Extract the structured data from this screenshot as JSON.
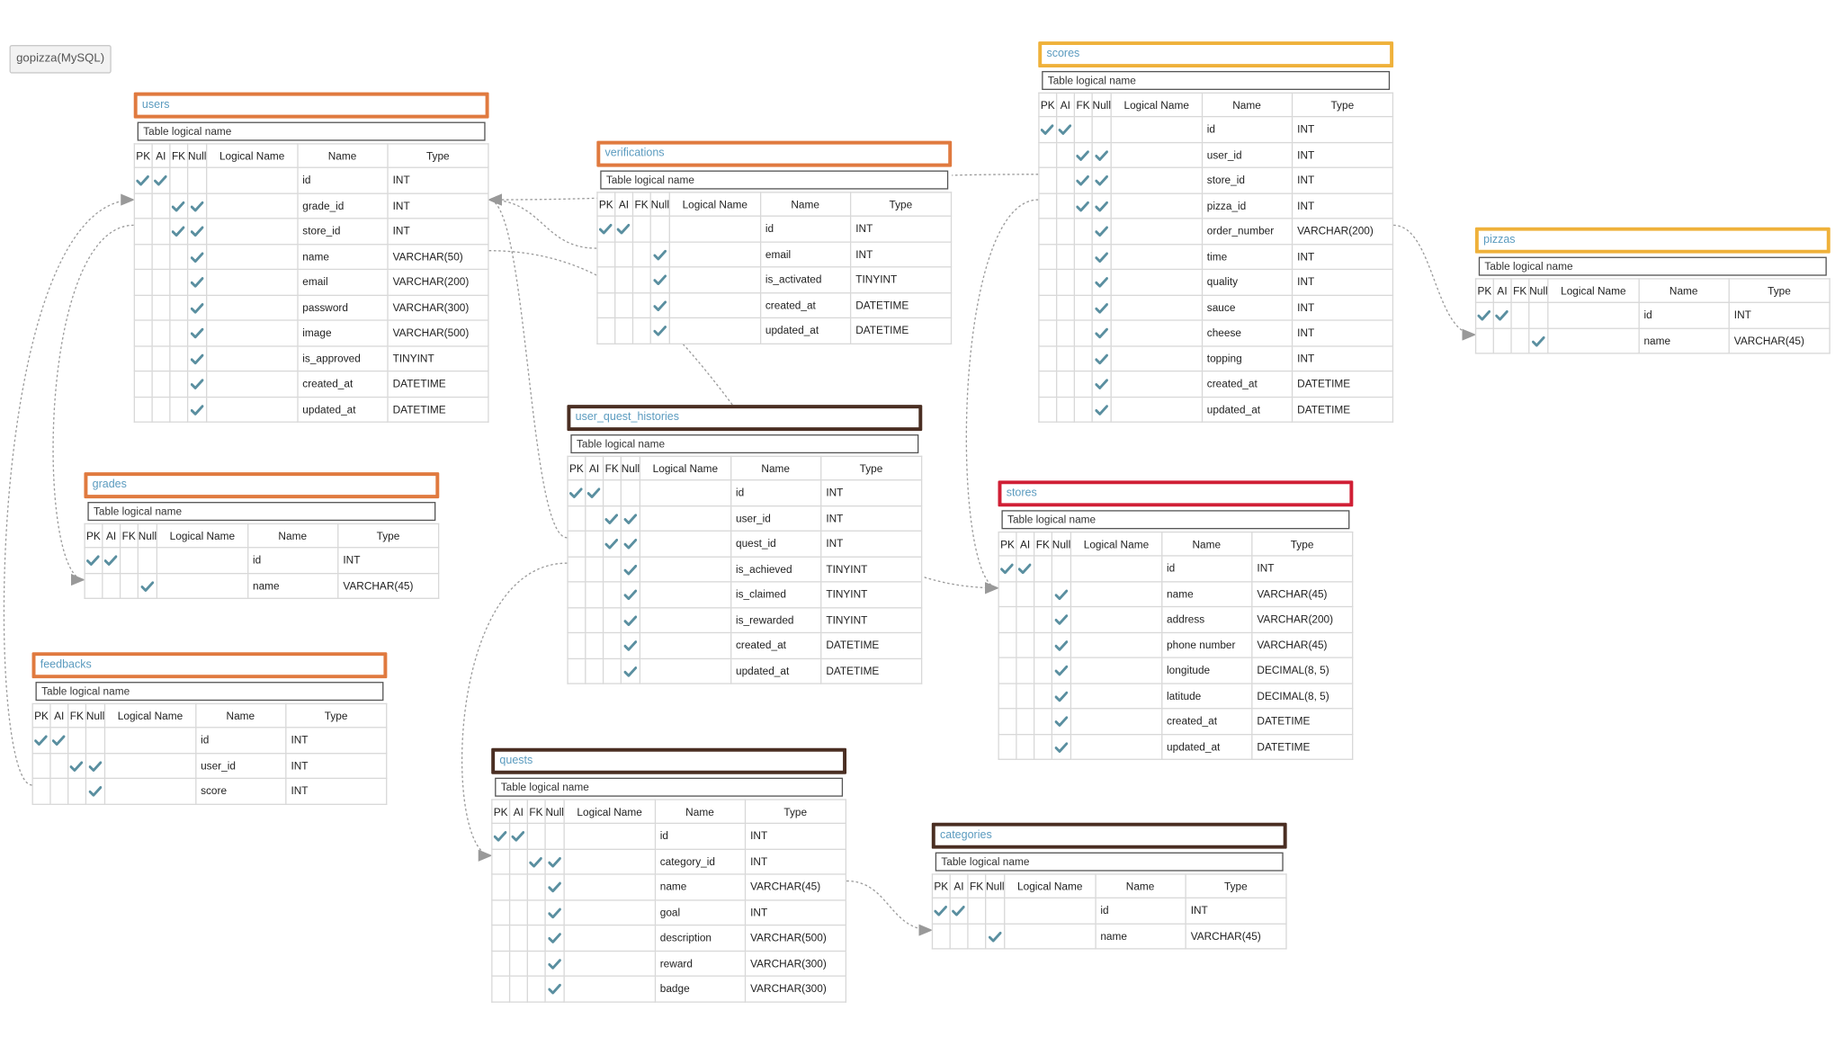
{
  "database_label": "gopizza(MySQL)",
  "headers": {
    "pk": "PK",
    "ai": "AI",
    "fk": "FK",
    "null": "Null",
    "logical": "Logical Name",
    "name": "Name",
    "type": "Type"
  },
  "logical_placeholder": "Table logical name",
  "tables": [
    {
      "key": "users",
      "name": "users",
      "border_color": "#e07a3f",
      "columns": [
        {
          "pk": true,
          "ai": true,
          "fk": false,
          "null": false,
          "name": "id",
          "type": "INT"
        },
        {
          "pk": false,
          "ai": false,
          "fk": true,
          "null": true,
          "name": "grade_id",
          "type": "INT"
        },
        {
          "pk": false,
          "ai": false,
          "fk": true,
          "null": true,
          "name": "store_id",
          "type": "INT"
        },
        {
          "pk": false,
          "ai": false,
          "fk": false,
          "null": true,
          "name": "name",
          "type": "VARCHAR(50)"
        },
        {
          "pk": false,
          "ai": false,
          "fk": false,
          "null": true,
          "name": "email",
          "type": "VARCHAR(200)"
        },
        {
          "pk": false,
          "ai": false,
          "fk": false,
          "null": true,
          "name": "password",
          "type": "VARCHAR(300)"
        },
        {
          "pk": false,
          "ai": false,
          "fk": false,
          "null": true,
          "name": "image",
          "type": "VARCHAR(500)"
        },
        {
          "pk": false,
          "ai": false,
          "fk": false,
          "null": true,
          "name": "is_approved",
          "type": "TINYINT"
        },
        {
          "pk": false,
          "ai": false,
          "fk": false,
          "null": true,
          "name": "created_at",
          "type": "DATETIME"
        },
        {
          "pk": false,
          "ai": false,
          "fk": false,
          "null": true,
          "name": "updated_at",
          "type": "DATETIME"
        }
      ]
    },
    {
      "key": "verifications",
      "name": "verifications",
      "border_color": "#e07a3f",
      "columns": [
        {
          "pk": true,
          "ai": true,
          "fk": false,
          "null": false,
          "name": "id",
          "type": "INT"
        },
        {
          "pk": false,
          "ai": false,
          "fk": false,
          "null": true,
          "name": "email",
          "type": "INT"
        },
        {
          "pk": false,
          "ai": false,
          "fk": false,
          "null": true,
          "name": "is_activated",
          "type": "TINYINT"
        },
        {
          "pk": false,
          "ai": false,
          "fk": false,
          "null": true,
          "name": "created_at",
          "type": "DATETIME"
        },
        {
          "pk": false,
          "ai": false,
          "fk": false,
          "null": true,
          "name": "updated_at",
          "type": "DATETIME"
        }
      ]
    },
    {
      "key": "scores",
      "name": "scores",
      "border_color": "#efb13a",
      "columns": [
        {
          "pk": true,
          "ai": true,
          "fk": false,
          "null": false,
          "name": "id",
          "type": "INT"
        },
        {
          "pk": false,
          "ai": false,
          "fk": true,
          "null": true,
          "name": "user_id",
          "type": "INT"
        },
        {
          "pk": false,
          "ai": false,
          "fk": true,
          "null": true,
          "name": "store_id",
          "type": "INT"
        },
        {
          "pk": false,
          "ai": false,
          "fk": true,
          "null": true,
          "name": "pizza_id",
          "type": "INT"
        },
        {
          "pk": false,
          "ai": false,
          "fk": false,
          "null": true,
          "name": "order_number",
          "type": "VARCHAR(200)"
        },
        {
          "pk": false,
          "ai": false,
          "fk": false,
          "null": true,
          "name": "time",
          "type": "INT"
        },
        {
          "pk": false,
          "ai": false,
          "fk": false,
          "null": true,
          "name": "quality",
          "type": "INT"
        },
        {
          "pk": false,
          "ai": false,
          "fk": false,
          "null": true,
          "name": "sauce",
          "type": "INT"
        },
        {
          "pk": false,
          "ai": false,
          "fk": false,
          "null": true,
          "name": "cheese",
          "type": "INT"
        },
        {
          "pk": false,
          "ai": false,
          "fk": false,
          "null": true,
          "name": "topping",
          "type": "INT"
        },
        {
          "pk": false,
          "ai": false,
          "fk": false,
          "null": true,
          "name": "created_at",
          "type": "DATETIME"
        },
        {
          "pk": false,
          "ai": false,
          "fk": false,
          "null": true,
          "name": "updated_at",
          "type": "DATETIME"
        }
      ]
    },
    {
      "key": "pizzas",
      "name": "pizzas",
      "border_color": "#efb13a",
      "columns": [
        {
          "pk": true,
          "ai": true,
          "fk": false,
          "null": false,
          "name": "id",
          "type": "INT"
        },
        {
          "pk": false,
          "ai": false,
          "fk": false,
          "null": true,
          "name": "name",
          "type": "VARCHAR(45)"
        }
      ]
    },
    {
      "key": "grades",
      "name": "grades",
      "border_color": "#e07a3f",
      "columns": [
        {
          "pk": true,
          "ai": true,
          "fk": false,
          "null": false,
          "name": "id",
          "type": "INT"
        },
        {
          "pk": false,
          "ai": false,
          "fk": false,
          "null": true,
          "name": "name",
          "type": "VARCHAR(45)"
        }
      ]
    },
    {
      "key": "user_quest_histories",
      "name": "user_quest_histories",
      "border_color": "#4a2e22",
      "columns": [
        {
          "pk": true,
          "ai": true,
          "fk": false,
          "null": false,
          "name": "id",
          "type": "INT"
        },
        {
          "pk": false,
          "ai": false,
          "fk": true,
          "null": true,
          "name": "user_id",
          "type": "INT"
        },
        {
          "pk": false,
          "ai": false,
          "fk": true,
          "null": true,
          "name": "quest_id",
          "type": "INT"
        },
        {
          "pk": false,
          "ai": false,
          "fk": false,
          "null": true,
          "name": "is_achieved",
          "type": "TINYINT"
        },
        {
          "pk": false,
          "ai": false,
          "fk": false,
          "null": true,
          "name": "is_claimed",
          "type": "TINYINT"
        },
        {
          "pk": false,
          "ai": false,
          "fk": false,
          "null": true,
          "name": "is_rewarded",
          "type": "TINYINT"
        },
        {
          "pk": false,
          "ai": false,
          "fk": false,
          "null": true,
          "name": "created_at",
          "type": "DATETIME"
        },
        {
          "pk": false,
          "ai": false,
          "fk": false,
          "null": true,
          "name": "updated_at",
          "type": "DATETIME"
        }
      ]
    },
    {
      "key": "stores",
      "name": "stores",
      "border_color": "#d01f35",
      "columns": [
        {
          "pk": true,
          "ai": true,
          "fk": false,
          "null": false,
          "name": "id",
          "type": "INT"
        },
        {
          "pk": false,
          "ai": false,
          "fk": false,
          "null": true,
          "name": "name",
          "type": "VARCHAR(45)"
        },
        {
          "pk": false,
          "ai": false,
          "fk": false,
          "null": true,
          "name": "address",
          "type": "VARCHAR(200)"
        },
        {
          "pk": false,
          "ai": false,
          "fk": false,
          "null": true,
          "name": "phone number",
          "type": "VARCHAR(45)"
        },
        {
          "pk": false,
          "ai": false,
          "fk": false,
          "null": true,
          "name": "longitude",
          "type": "DECIMAL(8, 5)"
        },
        {
          "pk": false,
          "ai": false,
          "fk": false,
          "null": true,
          "name": "latitude",
          "type": "DECIMAL(8, 5)"
        },
        {
          "pk": false,
          "ai": false,
          "fk": false,
          "null": true,
          "name": "created_at",
          "type": "DATETIME"
        },
        {
          "pk": false,
          "ai": false,
          "fk": false,
          "null": true,
          "name": "updated_at",
          "type": "DATETIME"
        }
      ]
    },
    {
      "key": "feedbacks",
      "name": "feedbacks",
      "border_color": "#e07a3f",
      "columns": [
        {
          "pk": true,
          "ai": true,
          "fk": false,
          "null": false,
          "name": "id",
          "type": "INT"
        },
        {
          "pk": false,
          "ai": false,
          "fk": true,
          "null": true,
          "name": "user_id",
          "type": "INT"
        },
        {
          "pk": false,
          "ai": false,
          "fk": false,
          "null": true,
          "name": "score",
          "type": "INT"
        }
      ]
    },
    {
      "key": "quests",
      "name": "quests",
      "border_color": "#4a2e22",
      "columns": [
        {
          "pk": true,
          "ai": true,
          "fk": false,
          "null": false,
          "name": "id",
          "type": "INT"
        },
        {
          "pk": false,
          "ai": false,
          "fk": true,
          "null": true,
          "name": "category_id",
          "type": "INT"
        },
        {
          "pk": false,
          "ai": false,
          "fk": false,
          "null": true,
          "name": "name",
          "type": "VARCHAR(45)"
        },
        {
          "pk": false,
          "ai": false,
          "fk": false,
          "null": true,
          "name": "goal",
          "type": "INT"
        },
        {
          "pk": false,
          "ai": false,
          "fk": false,
          "null": true,
          "name": "description",
          "type": "VARCHAR(500)"
        },
        {
          "pk": false,
          "ai": false,
          "fk": false,
          "null": true,
          "name": "reward",
          "type": "VARCHAR(300)"
        },
        {
          "pk": false,
          "ai": false,
          "fk": false,
          "null": true,
          "name": "badge",
          "type": "VARCHAR(300)"
        }
      ]
    },
    {
      "key": "categories",
      "name": "categories",
      "border_color": "#4a2e22",
      "columns": [
        {
          "pk": true,
          "ai": true,
          "fk": false,
          "null": false,
          "name": "id",
          "type": "INT"
        },
        {
          "pk": false,
          "ai": false,
          "fk": false,
          "null": true,
          "name": "name",
          "type": "VARCHAR(45)"
        }
      ]
    }
  ],
  "relationships": [
    {
      "from": "users.grade_id",
      "to": "grades.id"
    },
    {
      "from": "users.store_id",
      "to": "stores.id"
    },
    {
      "from": "verifications.id",
      "to": "users.id"
    },
    {
      "from": "scores.user_id",
      "to": "users.id"
    },
    {
      "from": "scores.store_id",
      "to": "stores.id"
    },
    {
      "from": "scores.pizza_id",
      "to": "pizzas.id"
    },
    {
      "from": "user_quest_histories.user_id",
      "to": "users.id"
    },
    {
      "from": "user_quest_histories.quest_id",
      "to": "quests.id"
    },
    {
      "from": "feedbacks.user_id",
      "to": "users.id"
    },
    {
      "from": "quests.category_id",
      "to": "categories.id"
    }
  ],
  "check_color": "#5a8fa0"
}
